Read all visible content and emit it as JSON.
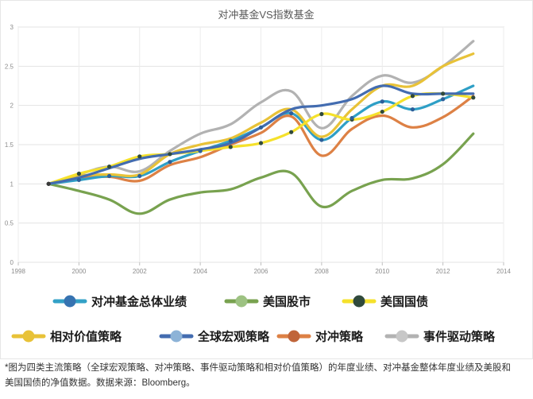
{
  "chart_data": {
    "type": "line",
    "title": "对冲基金VS指数基金",
    "xlabel": "",
    "ylabel": "",
    "xlim": [
      1998,
      2014
    ],
    "ylim": [
      0,
      3
    ],
    "x_ticks": [
      "1998",
      "2000",
      "2002",
      "2004",
      "2006",
      "2008",
      "2010",
      "2012",
      "2014"
    ],
    "y_ticks": [
      "0",
      "0.5",
      "1",
      "1.5",
      "2",
      "2.5",
      "3"
    ],
    "grid": "horizontal",
    "legend_position": "bottom",
    "x": [
      1999,
      2000,
      2001,
      2002,
      2003,
      2004,
      2005,
      2006,
      2007,
      2008,
      2009,
      2010,
      2011,
      2012,
      2013
    ],
    "series": [
      {
        "name": "对冲基金总体业绩",
        "color": "#2e9fc6",
        "values": [
          1.0,
          1.05,
          1.1,
          1.1,
          1.28,
          1.42,
          1.55,
          1.72,
          1.9,
          1.56,
          1.84,
          2.05,
          1.95,
          2.08,
          2.25
        ]
      },
      {
        "name": "美国股市",
        "color": "#78a24f",
        "values": [
          1.0,
          0.91,
          0.8,
          0.62,
          0.8,
          0.89,
          0.93,
          1.08,
          1.14,
          0.71,
          0.91,
          1.05,
          1.07,
          1.25,
          1.64
        ]
      },
      {
        "name": "美国国债",
        "color": "#f5e12b",
        "values": [
          1.0,
          1.13,
          1.22,
          1.35,
          1.38,
          1.42,
          1.47,
          1.52,
          1.66,
          1.89,
          1.82,
          1.92,
          2.12,
          2.15,
          2.1
        ]
      },
      {
        "name": "相对价值策略",
        "color": "#e8c238",
        "values": [
          1.0,
          1.1,
          1.12,
          1.12,
          1.38,
          1.5,
          1.58,
          1.78,
          1.95,
          1.6,
          1.95,
          2.25,
          2.25,
          2.5,
          2.66
        ]
      },
      {
        "name": "全球宏观策略",
        "color": "#436cb0",
        "values": [
          1.0,
          1.08,
          1.2,
          1.32,
          1.38,
          1.44,
          1.52,
          1.72,
          1.95,
          2.0,
          2.08,
          2.25,
          2.15,
          2.15,
          2.15
        ]
      },
      {
        "name": "对冲策略",
        "color": "#dd8145",
        "values": [
          1.0,
          1.07,
          1.09,
          1.04,
          1.24,
          1.34,
          1.5,
          1.65,
          1.86,
          1.36,
          1.7,
          1.87,
          1.72,
          1.85,
          2.12
        ]
      },
      {
        "name": "事件驱动策略",
        "color": "#b2b2b2",
        "values": [
          1.0,
          1.12,
          1.22,
          1.16,
          1.42,
          1.64,
          1.76,
          2.04,
          2.18,
          1.71,
          2.12,
          2.38,
          2.29,
          2.5,
          2.82
        ]
      }
    ],
    "dot_series": [
      {
        "name": "美国国债",
        "color": "#304a3c",
        "values": [
          1.0,
          1.13,
          1.22,
          1.35,
          1.38,
          1.42,
          1.47,
          1.52,
          1.66,
          1.89,
          1.82,
          1.92,
          2.12,
          2.15,
          2.1
        ]
      },
      {
        "name": "对冲基金总体业绩",
        "color": "#2c5f9a",
        "values": [
          1.0,
          1.05,
          1.1,
          1.1,
          1.28,
          1.42,
          1.55,
          1.72,
          1.9,
          1.56,
          1.84,
          2.05,
          1.95,
          2.08,
          2.25
        ]
      }
    ],
    "legend": [
      {
        "label": "对冲基金总体业绩",
        "line": "#33a1c7",
        "dot": "#3673b1"
      },
      {
        "label": "美国股市",
        "line": "#78a24f",
        "dot": "#9dc282"
      },
      {
        "label": "美国国债",
        "line": "#f5e12b",
        "dot": "#304a3c"
      },
      {
        "label": "相对价值策略",
        "line": "#e8c238",
        "dot": "#e8c238"
      },
      {
        "label": "全球宏观策略",
        "line": "#436cb0",
        "dot": "#8db3d7"
      },
      {
        "label": "对冲策略",
        "line": "#dd8145",
        "dot": "#c0653a"
      },
      {
        "label": "事件驱动策略",
        "line": "#b2b2b2",
        "dot": "#c7c7c7"
      }
    ]
  },
  "caption": {
    "line1": "*图为四类主流策略（全球宏观策略、对冲策略、事件驱动策略和相对价值策略）的年度业绩、对冲基金整体年度业绩及美股和",
    "line2": "美国国债的净值数据。数据来源：Bloomberg。"
  }
}
